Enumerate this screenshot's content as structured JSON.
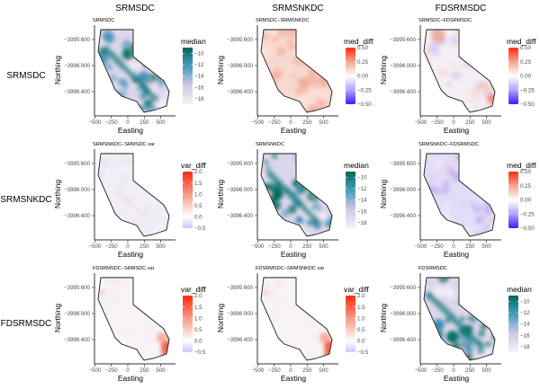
{
  "column_titles": [
    "SRMSDC",
    "SRMSNKDC",
    "FDSRMSDC"
  ],
  "row_labels": [
    "SRMSDC",
    "SRMSNKDC",
    "FDSRMSDC"
  ],
  "colors": {
    "median_low": "#f7f0fa",
    "median_mid": "#4a9bbf",
    "median_high": "#016c59",
    "diff_low": "#3b1cff",
    "diff_mid": "#ffffff",
    "diff_high": "#ff2a10",
    "outline": "#1a1a1a"
  },
  "chart_data": {
    "type": "heatmap",
    "xlabel": "Easting",
    "ylabel": "Northing",
    "x_ticks": [
      -500,
      -250,
      0,
      250,
      500
    ],
    "x_tick_labels": [
      "−500",
      "−250",
      "0",
      "250",
      "500"
    ],
    "y_ticks": [
      -3995600,
      -3996000,
      -3996400
    ],
    "y_tick_labels": [
      "−3995 600",
      "−3996 000",
      "−3996 400"
    ],
    "legends": {
      "median": {
        "title": "median",
        "ticks": [
          -10,
          -12,
          -14,
          -16,
          -18
        ],
        "tick_labels": [
          "−10",
          "−12",
          "−14",
          "−16",
          "−18"
        ],
        "range": [
          -9,
          -19
        ]
      },
      "med_diff": {
        "title": "med_diff",
        "ticks": [
          0.5,
          0.25,
          0,
          -0.25,
          -0.5
        ],
        "tick_labels": [
          "0.50",
          "0.25",
          "0.00",
          "−0.25",
          "−0.50"
        ],
        "range": [
          0.5,
          -0.5
        ]
      },
      "var_diff": {
        "title": "var_diff",
        "ticks": [
          2.0,
          1.5,
          1.0,
          0.5,
          0.0,
          -0.5
        ],
        "tick_labels": [
          "2.0",
          "1.5",
          "1.0",
          "0.5",
          "0.0",
          "−0.5"
        ],
        "range": [
          2.0,
          -0.5
        ]
      }
    },
    "panels": [
      [
        {
          "subtitle": "SRMSDC",
          "legend": "median",
          "style": "median"
        },
        {
          "subtitle": "SRMSDC−SRMSNKDC",
          "legend": "med_diff",
          "style": "diff_pos"
        },
        {
          "subtitle": "SRMSDC−FDSRMSDC",
          "legend": "med_diff",
          "style": "diff_mixed"
        }
      ],
      [
        {
          "subtitle": "SRMSNKDC−SRMSDC var",
          "legend": "var_diff",
          "style": "var_flat"
        },
        {
          "subtitle": "SRMSNKDC",
          "legend": "median",
          "style": "median"
        },
        {
          "subtitle": "SRMSNKDC−FDSRMSDC",
          "legend": "med_diff",
          "style": "diff_neg"
        }
      ],
      [
        {
          "subtitle": "FDSRMSDC−SRMSDC var",
          "legend": "var_diff",
          "style": "var_edge"
        },
        {
          "subtitle": "FDSRMSDC−SRMSNKDC var",
          "legend": "var_diff",
          "style": "var_edge"
        },
        {
          "subtitle": "FDSRMSDC",
          "legend": "median",
          "style": "median"
        }
      ]
    ]
  }
}
